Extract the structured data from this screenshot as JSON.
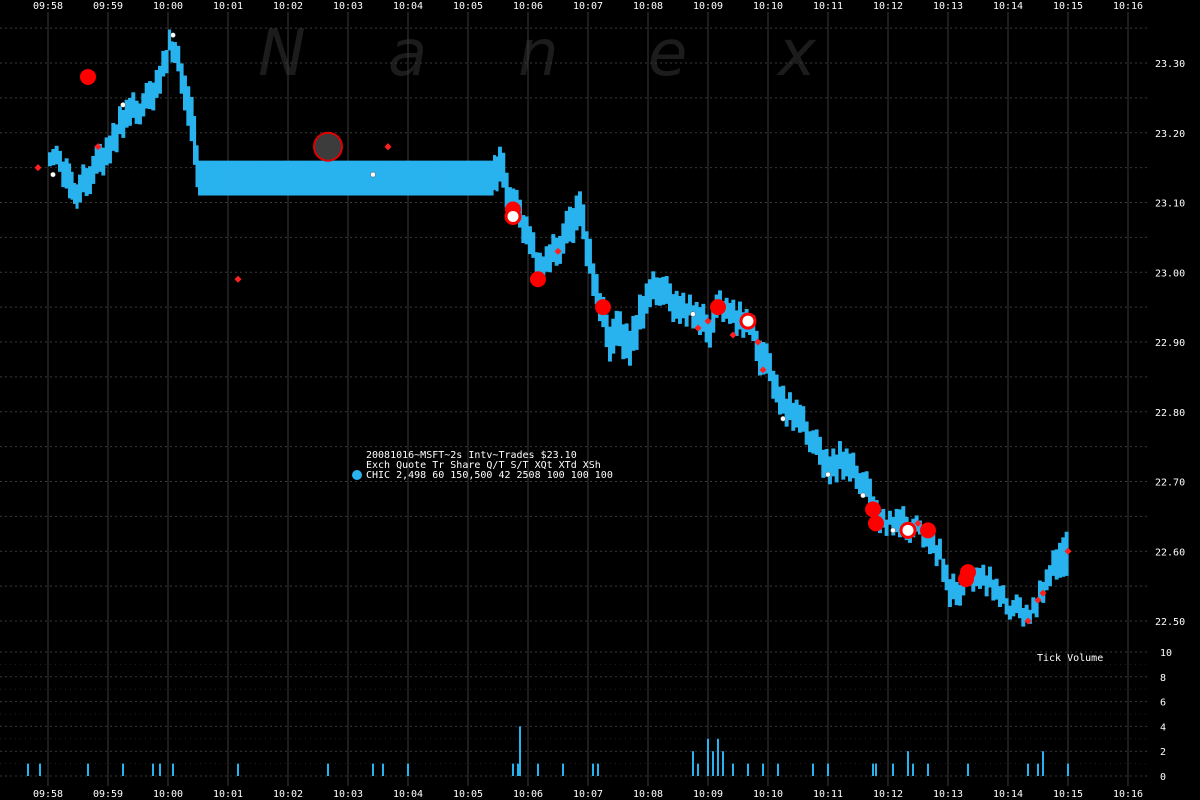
{
  "colors": {
    "background": "#000000",
    "grid": "#3a3a3a",
    "series": "#29b3ee",
    "trade_large": "#ff0000",
    "trade_small": "#ff2020",
    "trade_white": "#ffffff",
    "highlight_fill": "#3c3c3c",
    "highlight_stroke": "#e00000",
    "text": "#ffffff"
  },
  "watermark": [
    "N",
    "a",
    "n",
    "e",
    "x"
  ],
  "info": {
    "line1": "20081016~MSFT~2s Intv~Trades $23.10",
    "line2": "Exch Quote Tr   Share  Q/T   S/T  XQt XTd XSh",
    "line3": "CHIC 2,498 60 150,500    42  2508 100 100 100"
  },
  "volume_label": "Tick Volume",
  "chart_data": {
    "type": "line",
    "title": "20081016~MSFT~2s Intv~Trades $23.10",
    "symbol": "MSFT",
    "date": "20081016",
    "interval": "2s",
    "exchange": "CHIC",
    "x_ticks": [
      "09:58",
      "09:59",
      "10:00",
      "10:01",
      "10:02",
      "10:03",
      "10:04",
      "10:05",
      "10:06",
      "10:07",
      "10:08",
      "10:09",
      "10:10",
      "10:11",
      "10:12",
      "10:13",
      "10:14",
      "10:15",
      "10:16"
    ],
    "x_range": [
      "09:57:30",
      "10:16:15"
    ],
    "y_ticks": [
      "22.50",
      "22.60",
      "22.70",
      "22.80",
      "22.90",
      "23.00",
      "23.10",
      "23.20",
      "23.30"
    ],
    "ylim": [
      22.45,
      23.35
    ],
    "volume_ticks": [
      "0",
      "2",
      "4",
      "6",
      "8",
      "10"
    ],
    "volume_ylim": [
      0,
      10
    ],
    "grid": true,
    "quote_band": [
      {
        "t": "09:58:00",
        "lo": 23.16,
        "hi": 23.18
      },
      {
        "t": "09:58:10",
        "lo": 23.14,
        "hi": 23.17
      },
      {
        "t": "09:58:20",
        "lo": 23.11,
        "hi": 23.16
      },
      {
        "t": "09:58:25",
        "lo": 23.09,
        "hi": 23.12
      },
      {
        "t": "09:58:30",
        "lo": 23.1,
        "hi": 23.14
      },
      {
        "t": "09:58:40",
        "lo": 23.12,
        "hi": 23.16
      },
      {
        "t": "09:58:50",
        "lo": 23.14,
        "hi": 23.18
      },
      {
        "t": "09:59:00",
        "lo": 23.16,
        "hi": 23.2
      },
      {
        "t": "09:59:10",
        "lo": 23.19,
        "hi": 23.23
      },
      {
        "t": "09:59:20",
        "lo": 23.21,
        "hi": 23.25
      },
      {
        "t": "09:59:30",
        "lo": 23.22,
        "hi": 23.25
      },
      {
        "t": "09:59:40",
        "lo": 23.23,
        "hi": 23.27
      },
      {
        "t": "09:59:50",
        "lo": 23.26,
        "hi": 23.3
      },
      {
        "t": "10:00:00",
        "lo": 23.31,
        "hi": 23.34
      },
      {
        "t": "10:00:05",
        "lo": 23.3,
        "hi": 23.33
      },
      {
        "t": "10:00:15",
        "lo": 23.24,
        "hi": 23.29
      },
      {
        "t": "10:00:25",
        "lo": 23.15,
        "hi": 23.22
      },
      {
        "t": "10:00:30",
        "lo": 23.11,
        "hi": 23.16
      },
      {
        "t": "10:05:25",
        "lo": 23.11,
        "hi": 23.16
      },
      {
        "t": "10:05:30",
        "lo": 23.13,
        "hi": 23.18
      },
      {
        "t": "10:05:40",
        "lo": 23.08,
        "hi": 23.13
      },
      {
        "t": "10:05:50",
        "lo": 23.06,
        "hi": 23.1
      },
      {
        "t": "10:06:00",
        "lo": 23.03,
        "hi": 23.07
      },
      {
        "t": "10:06:10",
        "lo": 22.99,
        "hi": 23.02
      },
      {
        "t": "10:06:20",
        "lo": 23.0,
        "hi": 23.04
      },
      {
        "t": "10:06:30",
        "lo": 23.02,
        "hi": 23.06
      },
      {
        "t": "10:06:40",
        "lo": 23.04,
        "hi": 23.09
      },
      {
        "t": "10:06:50",
        "lo": 23.07,
        "hi": 23.12
      },
      {
        "t": "10:07:00",
        "lo": 22.99,
        "hi": 23.04
      },
      {
        "t": "10:07:10",
        "lo": 22.93,
        "hi": 22.97
      },
      {
        "t": "10:07:20",
        "lo": 22.88,
        "hi": 22.93
      },
      {
        "t": "10:07:30",
        "lo": 22.89,
        "hi": 22.94
      },
      {
        "t": "10:07:40",
        "lo": 22.87,
        "hi": 22.92
      },
      {
        "t": "10:07:50",
        "lo": 22.91,
        "hi": 22.96
      },
      {
        "t": "10:08:00",
        "lo": 22.95,
        "hi": 22.99
      },
      {
        "t": "10:08:10",
        "lo": 22.96,
        "hi": 23.0
      },
      {
        "t": "10:08:20",
        "lo": 22.94,
        "hi": 22.98
      },
      {
        "t": "10:08:30",
        "lo": 22.93,
        "hi": 22.97
      },
      {
        "t": "10:08:40",
        "lo": 22.93,
        "hi": 22.96
      },
      {
        "t": "10:08:50",
        "lo": 22.91,
        "hi": 22.95
      },
      {
        "t": "10:09:00",
        "lo": 22.9,
        "hi": 22.94
      },
      {
        "t": "10:09:10",
        "lo": 22.94,
        "hi": 22.97
      },
      {
        "t": "10:09:20",
        "lo": 22.93,
        "hi": 22.96
      },
      {
        "t": "10:09:30",
        "lo": 22.91,
        "hi": 22.95
      },
      {
        "t": "10:09:40",
        "lo": 22.91,
        "hi": 22.94
      },
      {
        "t": "10:09:50",
        "lo": 22.86,
        "hi": 22.91
      },
      {
        "t": "10:10:00",
        "lo": 22.84,
        "hi": 22.88
      },
      {
        "t": "10:10:10",
        "lo": 22.8,
        "hi": 22.84
      },
      {
        "t": "10:10:20",
        "lo": 22.78,
        "hi": 22.82
      },
      {
        "t": "10:10:30",
        "lo": 22.77,
        "hi": 22.81
      },
      {
        "t": "10:10:40",
        "lo": 22.75,
        "hi": 22.78
      },
      {
        "t": "10:10:50",
        "lo": 22.72,
        "hi": 22.76
      },
      {
        "t": "10:11:00",
        "lo": 22.7,
        "hi": 22.74
      },
      {
        "t": "10:11:10",
        "lo": 22.71,
        "hi": 22.75
      },
      {
        "t": "10:11:20",
        "lo": 22.7,
        "hi": 22.74
      },
      {
        "t": "10:11:30",
        "lo": 22.69,
        "hi": 22.72
      },
      {
        "t": "10:11:40",
        "lo": 22.66,
        "hi": 22.7
      },
      {
        "t": "10:11:50",
        "lo": 22.63,
        "hi": 22.66
      },
      {
        "t": "10:12:00",
        "lo": 22.63,
        "hi": 22.65
      },
      {
        "t": "10:12:10",
        "lo": 22.62,
        "hi": 22.66
      },
      {
        "t": "10:12:20",
        "lo": 22.62,
        "hi": 22.65
      },
      {
        "t": "10:12:30",
        "lo": 22.62,
        "hi": 22.64
      },
      {
        "t": "10:12:40",
        "lo": 22.6,
        "hi": 22.63
      },
      {
        "t": "10:12:50",
        "lo": 22.58,
        "hi": 22.61
      },
      {
        "t": "10:13:00",
        "lo": 22.52,
        "hi": 22.56
      },
      {
        "t": "10:13:10",
        "lo": 22.53,
        "hi": 22.56
      },
      {
        "t": "10:13:20",
        "lo": 22.55,
        "hi": 22.57
      },
      {
        "t": "10:13:30",
        "lo": 22.55,
        "hi": 22.58
      },
      {
        "t": "10:13:40",
        "lo": 22.54,
        "hi": 22.57
      },
      {
        "t": "10:13:50",
        "lo": 22.52,
        "hi": 22.55
      },
      {
        "t": "10:14:00",
        "lo": 22.51,
        "hi": 22.53
      },
      {
        "t": "10:14:10",
        "lo": 22.5,
        "hi": 22.53
      },
      {
        "t": "10:14:20",
        "lo": 22.5,
        "hi": 22.52
      },
      {
        "t": "10:14:30",
        "lo": 22.52,
        "hi": 22.55
      },
      {
        "t": "10:14:40",
        "lo": 22.55,
        "hi": 22.58
      },
      {
        "t": "10:14:50",
        "lo": 22.57,
        "hi": 22.62
      },
      {
        "t": "10:15:00",
        "lo": 22.55,
        "hi": 22.62
      }
    ],
    "trades": [
      {
        "t": "09:58:40",
        "p": 23.28,
        "kind": "large"
      },
      {
        "t": "10:06:10",
        "p": 22.99,
        "kind": "large"
      },
      {
        "t": "10:07:15",
        "p": 22.95,
        "kind": "large"
      },
      {
        "t": "10:11:45",
        "p": 22.66,
        "kind": "large"
      },
      {
        "t": "10:11:48",
        "p": 22.64,
        "kind": "large"
      },
      {
        "t": "10:12:40",
        "p": 22.63,
        "kind": "large"
      },
      {
        "t": "10:13:20",
        "p": 22.57,
        "kind": "large"
      },
      {
        "t": "10:13:18",
        "p": 22.56,
        "kind": "large"
      },
      {
        "t": "10:09:10",
        "p": 22.95,
        "kind": "large"
      },
      {
        "t": "10:05:45",
        "p": 23.09,
        "kind": "large"
      },
      {
        "t": "10:05:45",
        "p": 23.08,
        "kind": "open"
      },
      {
        "t": "10:09:40",
        "p": 22.93,
        "kind": "open"
      },
      {
        "t": "10:12:20",
        "p": 22.63,
        "kind": "open"
      },
      {
        "t": "10:02:40",
        "p": 23.18,
        "kind": "highlight"
      },
      {
        "t": "09:58:50",
        "p": 23.18,
        "kind": "small"
      },
      {
        "t": "09:57:50",
        "p": 23.15,
        "kind": "small"
      },
      {
        "t": "10:01:10",
        "p": 22.99,
        "kind": "small"
      },
      {
        "t": "10:03:40",
        "p": 23.18,
        "kind": "small"
      },
      {
        "t": "10:06:30",
        "p": 23.03,
        "kind": "small"
      },
      {
        "t": "10:08:50",
        "p": 22.92,
        "kind": "small"
      },
      {
        "t": "10:09:00",
        "p": 22.93,
        "kind": "small"
      },
      {
        "t": "10:09:25",
        "p": 22.91,
        "kind": "small"
      },
      {
        "t": "10:09:50",
        "p": 22.9,
        "kind": "small"
      },
      {
        "t": "10:09:55",
        "p": 22.86,
        "kind": "small"
      },
      {
        "t": "10:12:30",
        "p": 22.64,
        "kind": "small"
      },
      {
        "t": "10:14:20",
        "p": 22.5,
        "kind": "small"
      },
      {
        "t": "10:14:30",
        "p": 22.53,
        "kind": "small"
      },
      {
        "t": "10:14:35",
        "p": 22.54,
        "kind": "small"
      },
      {
        "t": "10:15:00",
        "p": 22.6,
        "kind": "small"
      },
      {
        "t": "09:58:05",
        "p": 23.14,
        "kind": "white"
      },
      {
        "t": "09:59:15",
        "p": 23.24,
        "kind": "white"
      },
      {
        "t": "10:00:05",
        "p": 23.34,
        "kind": "white"
      },
      {
        "t": "10:03:25",
        "p": 23.14,
        "kind": "white"
      },
      {
        "t": "10:08:45",
        "p": 22.94,
        "kind": "white"
      },
      {
        "t": "10:10:15",
        "p": 22.79,
        "kind": "white"
      },
      {
        "t": "10:11:00",
        "p": 22.71,
        "kind": "white"
      },
      {
        "t": "10:11:35",
        "p": 22.68,
        "kind": "white"
      },
      {
        "t": "10:12:05",
        "p": 22.63,
        "kind": "white"
      }
    ],
    "volume": [
      {
        "t": "09:57:40",
        "v": 1
      },
      {
        "t": "09:57:52",
        "v": 1
      },
      {
        "t": "09:58:40",
        "v": 1
      },
      {
        "t": "09:59:15",
        "v": 1
      },
      {
        "t": "09:59:45",
        "v": 1
      },
      {
        "t": "09:59:52",
        "v": 1
      },
      {
        "t": "10:00:05",
        "v": 1
      },
      {
        "t": "10:01:10",
        "v": 1
      },
      {
        "t": "10:02:40",
        "v": 1
      },
      {
        "t": "10:03:25",
        "v": 1
      },
      {
        "t": "10:03:35",
        "v": 1
      },
      {
        "t": "10:04:00",
        "v": 1
      },
      {
        "t": "10:05:45",
        "v": 1
      },
      {
        "t": "10:05:50",
        "v": 1
      },
      {
        "t": "10:05:52",
        "v": 4
      },
      {
        "t": "10:06:10",
        "v": 1
      },
      {
        "t": "10:06:35",
        "v": 1
      },
      {
        "t": "10:07:05",
        "v": 1
      },
      {
        "t": "10:07:10",
        "v": 1
      },
      {
        "t": "10:08:45",
        "v": 2
      },
      {
        "t": "10:08:50",
        "v": 1
      },
      {
        "t": "10:09:00",
        "v": 3
      },
      {
        "t": "10:09:05",
        "v": 2
      },
      {
        "t": "10:09:10",
        "v": 3
      },
      {
        "t": "10:09:15",
        "v": 2
      },
      {
        "t": "10:09:25",
        "v": 1
      },
      {
        "t": "10:09:40",
        "v": 1
      },
      {
        "t": "10:09:55",
        "v": 1
      },
      {
        "t": "10:10:10",
        "v": 1
      },
      {
        "t": "10:10:45",
        "v": 1
      },
      {
        "t": "10:11:00",
        "v": 1
      },
      {
        "t": "10:11:45",
        "v": 1
      },
      {
        "t": "10:11:48",
        "v": 1
      },
      {
        "t": "10:12:05",
        "v": 1
      },
      {
        "t": "10:12:20",
        "v": 2
      },
      {
        "t": "10:12:25",
        "v": 1
      },
      {
        "t": "10:12:40",
        "v": 1
      },
      {
        "t": "10:13:20",
        "v": 1
      },
      {
        "t": "10:14:20",
        "v": 1
      },
      {
        "t": "10:14:30",
        "v": 1
      },
      {
        "t": "10:14:35",
        "v": 2
      },
      {
        "t": "10:15:00",
        "v": 1
      }
    ]
  }
}
